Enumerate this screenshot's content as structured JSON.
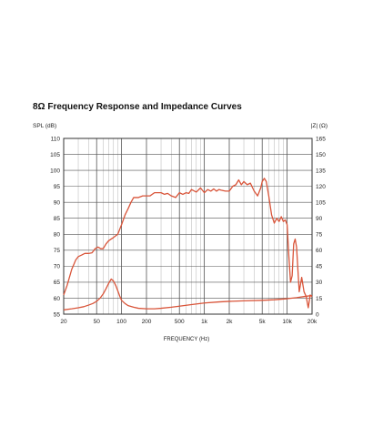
{
  "chart_data": {
    "type": "line",
    "title": "8Ω Frequency Response and Impedance Curves",
    "xlabel": "FREQUENCY (Hz)",
    "ylabel": "SPL (dB)",
    "y2label": "|Z| (Ω)",
    "x_scale": "log",
    "xlim": [
      20,
      20000
    ],
    "ylim": [
      55,
      110
    ],
    "y2lim": [
      0,
      165
    ],
    "grid": true,
    "x_ticks": [
      20,
      50,
      100,
      200,
      500,
      1000,
      2000,
      5000,
      10000,
      20000
    ],
    "x_tick_labels": [
      "20",
      "50",
      "100",
      "200",
      "500",
      "1k",
      "2k",
      "5k",
      "10k",
      "20k"
    ],
    "y_ticks": [
      55,
      60,
      65,
      70,
      75,
      80,
      85,
      90,
      95,
      100,
      105,
      110
    ],
    "y2_ticks": [
      0,
      15,
      30,
      45,
      60,
      75,
      90,
      105,
      120,
      135,
      150,
      165
    ],
    "line_color": "#d9553a",
    "series": [
      {
        "axis": "left",
        "x": [
          20,
          22,
          25,
          28,
          30,
          33,
          36,
          40,
          44,
          48,
          52,
          56,
          60,
          65,
          70,
          80,
          90,
          100,
          110,
          120,
          130,
          140,
          150,
          160,
          180,
          200,
          220,
          250,
          280,
          300,
          330,
          360,
          400,
          450,
          500,
          550,
          600,
          650,
          700,
          800,
          900,
          1000,
          1100,
          1200,
          1300,
          1400,
          1500,
          1600,
          1800,
          2000,
          2200,
          2400,
          2600,
          2800,
          3000,
          3300,
          3600,
          4000,
          4400,
          4800,
          5000,
          5300,
          5600,
          6000,
          6500,
          7000,
          7500,
          8000,
          8500,
          9000,
          9500,
          10000,
          10500,
          11000,
          11500,
          12000,
          12500,
          13000,
          14000,
          15000,
          16000,
          17000,
          18000,
          19000,
          20000
        ],
        "y": [
          61,
          64,
          69,
          72,
          73,
          73.5,
          74,
          74,
          74.2,
          75.5,
          76,
          75.5,
          75.5,
          77,
          78,
          79,
          80,
          83,
          86,
          88,
          90,
          91.5,
          91.5,
          91.5,
          92,
          92,
          92,
          93,
          93,
          93,
          92.5,
          92.8,
          92,
          91.5,
          93,
          92.5,
          93,
          92.8,
          94,
          93.2,
          94.5,
          93,
          94,
          93.5,
          94.2,
          93.5,
          94,
          93.8,
          93.5,
          93.5,
          95,
          95.5,
          97,
          95.5,
          96.5,
          95.5,
          96,
          93.5,
          92,
          94.5,
          96.5,
          97.5,
          96.5,
          92,
          86,
          83.5,
          85,
          84,
          85.5,
          84,
          84.5,
          83,
          73,
          65,
          67,
          77,
          78.5,
          76,
          62,
          66.5,
          62,
          60.5,
          57,
          61,
          60.5
        ]
      },
      {
        "axis": "right",
        "x": [
          20,
          25,
          30,
          35,
          40,
          45,
          50,
          55,
          60,
          65,
          70,
          75,
          80,
          85,
          90,
          95,
          100,
          110,
          120,
          140,
          160,
          200,
          250,
          300,
          400,
          500,
          700,
          1000,
          1500,
          2000,
          3000,
          5000,
          7000,
          10000,
          13000,
          16000,
          20000
        ],
        "y": [
          4,
          5,
          6,
          7,
          8.5,
          10,
          12,
          15,
          19,
          24,
          29,
          33,
          31,
          27,
          22,
          17,
          13,
          10,
          8,
          6.5,
          5.5,
          5,
          5,
          5.5,
          6.5,
          7.5,
          9,
          10.5,
          11.5,
          12,
          12.5,
          13,
          13.5,
          14.5,
          15.5,
          16.5,
          17.5
        ]
      }
    ]
  }
}
